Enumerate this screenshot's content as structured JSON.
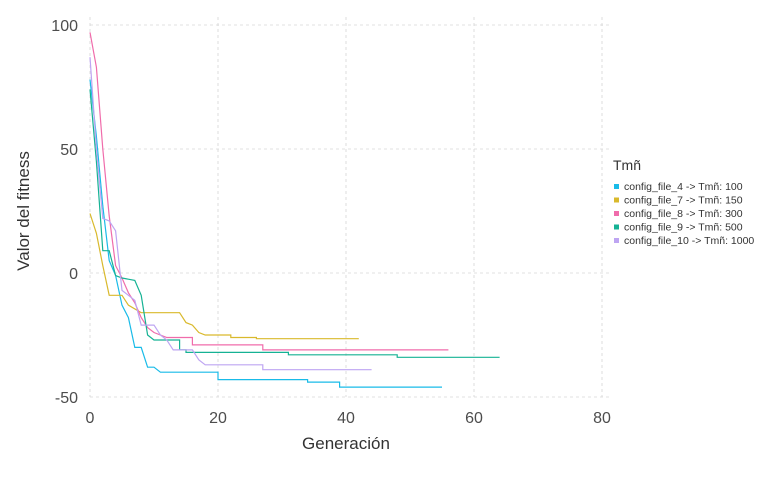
{
  "chart_data": {
    "type": "line",
    "title": "",
    "xlabel": "Generación",
    "ylabel": "Valor del fitness",
    "xlim": [
      0,
      80
    ],
    "ylim": [
      -50,
      100
    ],
    "x_ticks": [
      0,
      20,
      40,
      60,
      80
    ],
    "y_ticks": [
      -50,
      0,
      50,
      100
    ],
    "grid": true,
    "legend_title": "Tmñ",
    "legend_position": "right",
    "series": [
      {
        "name": "config_file_4 -> Tmñ: 100",
        "color": "#19bbe8",
        "points": [
          [
            0,
            78
          ],
          [
            1,
            55
          ],
          [
            2,
            27
          ],
          [
            3,
            5
          ],
          [
            4,
            -1
          ],
          [
            5,
            -13
          ],
          [
            6,
            -18
          ],
          [
            7,
            -30
          ],
          [
            8,
            -30
          ],
          [
            9,
            -38
          ],
          [
            10,
            -38
          ],
          [
            11,
            -40
          ],
          [
            20,
            -40
          ],
          [
            20,
            -43
          ],
          [
            34,
            -43
          ],
          [
            34,
            -44
          ],
          [
            39,
            -44
          ],
          [
            39,
            -46
          ],
          [
            55,
            -46
          ]
        ]
      },
      {
        "name": "config_file_7 -> Tmñ: 150",
        "color": "#d9b92c",
        "points": [
          [
            0,
            24
          ],
          [
            1,
            16
          ],
          [
            2,
            3
          ],
          [
            3,
            -9
          ],
          [
            5,
            -9
          ],
          [
            6,
            -13
          ],
          [
            8,
            -16
          ],
          [
            14,
            -16
          ],
          [
            15,
            -20
          ],
          [
            16,
            -21
          ],
          [
            17,
            -24
          ],
          [
            18,
            -25
          ],
          [
            22,
            -25
          ],
          [
            22,
            -26
          ],
          [
            26,
            -26
          ],
          [
            26,
            -26.5
          ],
          [
            42,
            -26.5
          ]
        ]
      },
      {
        "name": "config_file_8 -> Tmñ: 300",
        "color": "#f06cab",
        "points": [
          [
            0,
            97
          ],
          [
            1,
            83
          ],
          [
            2,
            50
          ],
          [
            3,
            23
          ],
          [
            4,
            3
          ],
          [
            5,
            -2
          ],
          [
            6,
            -8
          ],
          [
            7,
            -12
          ],
          [
            8,
            -18
          ],
          [
            9,
            -22
          ],
          [
            10,
            -24
          ],
          [
            12,
            -26
          ],
          [
            16,
            -26
          ],
          [
            16,
            -29
          ],
          [
            27,
            -29
          ],
          [
            27,
            -31
          ],
          [
            56,
            -31
          ]
        ]
      },
      {
        "name": "config_file_9 -> Tmñ: 500",
        "color": "#15b294",
        "points": [
          [
            0,
            74
          ],
          [
            1,
            45
          ],
          [
            2,
            9
          ],
          [
            3,
            9
          ],
          [
            4,
            -1
          ],
          [
            5,
            -2
          ],
          [
            7,
            -3
          ],
          [
            8,
            -9
          ],
          [
            9,
            -25
          ],
          [
            10,
            -27
          ],
          [
            14,
            -27
          ],
          [
            14,
            -31
          ],
          [
            15,
            -31
          ],
          [
            15,
            -32
          ],
          [
            31,
            -32
          ],
          [
            31,
            -33
          ],
          [
            48,
            -33
          ],
          [
            48,
            -34
          ],
          [
            64,
            -34
          ]
        ]
      },
      {
        "name": "config_file_10 -> Tmñ: 1000",
        "color": "#bea5f2",
        "points": [
          [
            0,
            87
          ],
          [
            1,
            50
          ],
          [
            2,
            22
          ],
          [
            3,
            21
          ],
          [
            4,
            17
          ],
          [
            5,
            -7
          ],
          [
            6,
            -9
          ],
          [
            7,
            -11
          ],
          [
            8,
            -21
          ],
          [
            10,
            -21
          ],
          [
            11,
            -25
          ],
          [
            12,
            -27
          ],
          [
            13,
            -31
          ],
          [
            16,
            -31
          ],
          [
            17,
            -35
          ],
          [
            18,
            -37
          ],
          [
            27,
            -37
          ],
          [
            27,
            -39
          ],
          [
            44,
            -39
          ]
        ]
      }
    ]
  }
}
